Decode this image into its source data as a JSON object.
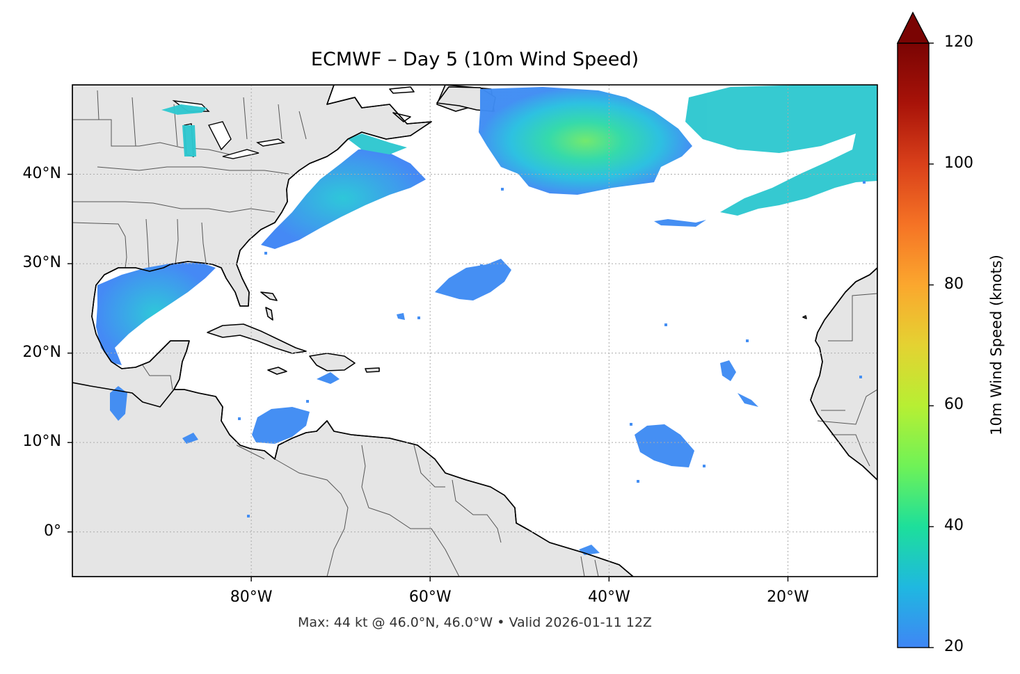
{
  "title": "ECMWF – Day 5 (10m Wind Speed)",
  "footer": "Max: 44 kt @ 46.0°N, 46.0°W • Valid 2026-01-11 12Z",
  "map": {
    "lon_range": [
      -100,
      -10
    ],
    "lat_range": [
      -5,
      50
    ],
    "lat_ticks": [
      {
        "value": 40,
        "label": "40°N"
      },
      {
        "value": 30,
        "label": "30°N"
      },
      {
        "value": 20,
        "label": "20°N"
      },
      {
        "value": 10,
        "label": "10°N"
      },
      {
        "value": 0,
        "label": "0°"
      }
    ],
    "lon_ticks": [
      {
        "value": -80,
        "label": "80°W"
      },
      {
        "value": -60,
        "label": "60°W"
      },
      {
        "value": -40,
        "label": "40°W"
      },
      {
        "value": -20,
        "label": "20°W"
      }
    ],
    "gridlines": true,
    "land_color": "#e5e5e5",
    "coast_color": "#000000"
  },
  "colorbar": {
    "label": "10m Wind Speed (knots)",
    "min": 20,
    "max": 120,
    "extend": "max",
    "ticks": [
      20,
      40,
      60,
      80,
      100,
      120
    ],
    "colormap": [
      "#3f86f5",
      "#1fb8e0",
      "#1ddf9b",
      "#6ff257",
      "#b7ef33",
      "#e4d232",
      "#fba72e",
      "#f57325",
      "#d9401a",
      "#a81309",
      "#7a0403"
    ]
  },
  "wind_areas": [
    {
      "name": "north-atlantic-storm",
      "max_kt": 44,
      "center": [
        -46,
        46
      ]
    }
  ]
}
